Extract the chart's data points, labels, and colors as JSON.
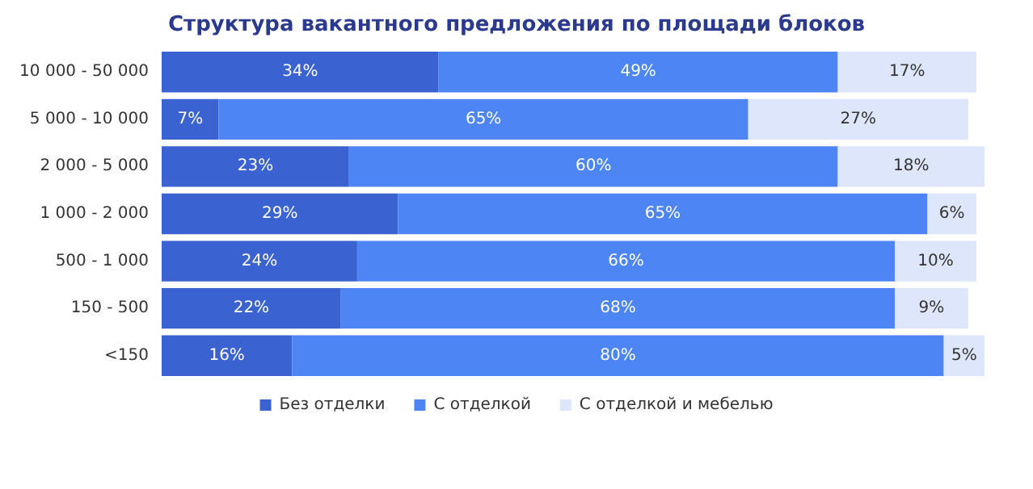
{
  "chart_data": {
    "type": "bar",
    "orientation": "horizontal",
    "stacked": true,
    "title": "Структура вакантного предложения по площади блоков",
    "categories": [
      "10 000 - 50 000",
      "5 000 - 10 000",
      "2 000 - 5 000",
      "1 000 - 2 000",
      "500 - 1 000",
      "150 - 500",
      "<150"
    ],
    "series": [
      {
        "name": "Без отделки",
        "color": "#3b62d1",
        "values": [
          34,
          7,
          23,
          29,
          24,
          22,
          16
        ],
        "value_labels": [
          "34%",
          "7%",
          "23%",
          "29%",
          "24%",
          "22%",
          "16%"
        ]
      },
      {
        "name": "С отделкой",
        "color": "#4d86f4",
        "values": [
          49,
          65,
          60,
          65,
          66,
          68,
          80
        ],
        "value_labels": [
          "49%",
          "65%",
          "60%",
          "65%",
          "66%",
          "68%",
          "80%"
        ]
      },
      {
        "name": "С отделкой и мебелью",
        "color": "#dde6fa",
        "values": [
          17,
          27,
          18,
          6,
          10,
          9,
          5
        ],
        "value_labels": [
          "17%",
          "27%",
          "18%",
          "6%",
          "10%",
          "9%",
          "5%"
        ]
      }
    ],
    "legend": "bottom"
  }
}
